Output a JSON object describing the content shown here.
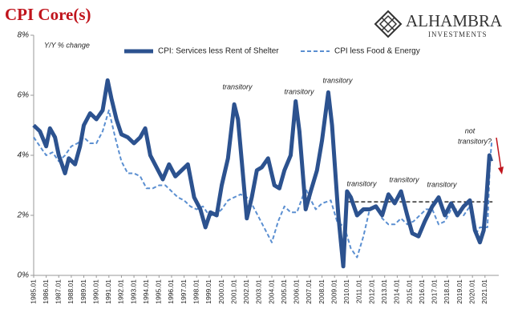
{
  "chart_data": {
    "type": "line",
    "title": "CPI Core(s)",
    "subtitle": "Y/Y % change",
    "logo": {
      "name": "ALHAMBRA",
      "tagline": "INVESTMENTS"
    },
    "annotations": [
      "transitory",
      "transitory",
      "transitory",
      "transitory",
      "transitory",
      "transitory"
    ],
    "question": [
      "not",
      "transitory?"
    ],
    "xlim": [
      1985,
      2022.1
    ],
    "ylim": [
      0,
      8
    ],
    "yticks": [
      {
        "value": 0,
        "label": "0%"
      },
      {
        "value": 2,
        "label": "2%"
      },
      {
        "value": 4,
        "label": "4%"
      },
      {
        "value": 6,
        "label": "6%"
      },
      {
        "value": 8,
        "label": "8%"
      }
    ],
    "xticks": [
      {
        "value": 1985,
        "label": "1985.01"
      },
      {
        "value": 1986,
        "label": "1986.01"
      },
      {
        "value": 1987,
        "label": "1987.01"
      },
      {
        "value": 1988,
        "label": "1988.01"
      },
      {
        "value": 1989,
        "label": "1989.01"
      },
      {
        "value": 1990,
        "label": "1990.01"
      },
      {
        "value": 1991,
        "label": "1991.01"
      },
      {
        "value": 1992,
        "label": "1992.01"
      },
      {
        "value": 1993,
        "label": "1993.01"
      },
      {
        "value": 1994,
        "label": "1994.01"
      },
      {
        "value": 1995,
        "label": "1995.01"
      },
      {
        "value": 1996,
        "label": "1996.01"
      },
      {
        "value": 1997,
        "label": "1997.01"
      },
      {
        "value": 1998,
        "label": "1998.01"
      },
      {
        "value": 1999,
        "label": "1999.01"
      },
      {
        "value": 2000,
        "label": "2000.01"
      },
      {
        "value": 2001,
        "label": "2001.01"
      },
      {
        "value": 2002,
        "label": "2002.01"
      },
      {
        "value": 2003,
        "label": "2003.01"
      },
      {
        "value": 2004,
        "label": "2004.01"
      },
      {
        "value": 2005,
        "label": "2005.01"
      },
      {
        "value": 2006,
        "label": "2006.01"
      },
      {
        "value": 2007,
        "label": "2007.01"
      },
      {
        "value": 2008,
        "label": "2008.01"
      },
      {
        "value": 2009,
        "label": "2009.01"
      },
      {
        "value": 2010,
        "label": "2010.01"
      },
      {
        "value": 2011,
        "label": "2011.01"
      },
      {
        "value": 2012,
        "label": "2012.01"
      },
      {
        "value": 2013,
        "label": "2013.01"
      },
      {
        "value": 2014,
        "label": "2014.01"
      },
      {
        "value": 2015,
        "label": "2015.01"
      },
      {
        "value": 2016,
        "label": "2016.01"
      },
      {
        "value": 2017,
        "label": "2017.01"
      },
      {
        "value": 2018,
        "label": "2018.01"
      },
      {
        "value": 2019,
        "label": "2019.01"
      },
      {
        "value": 2020,
        "label": "2020.01"
      },
      {
        "value": 2021,
        "label": "2021.01"
      }
    ],
    "reference_line": {
      "y": 2.45,
      "x": [
        2010.1,
        2021.6
      ],
      "color": "#000000"
    },
    "legend": "top",
    "series": [
      {
        "name": "CPI: Services less Rent of Shelter",
        "color": "#2c528f",
        "style": "solid",
        "x": [
          1985.0,
          1985.5,
          1986.0,
          1986.3,
          1986.7,
          1987.0,
          1987.5,
          1987.8,
          1988.3,
          1988.7,
          1989.0,
          1989.5,
          1990.0,
          1990.5,
          1990.9,
          1991.2,
          1991.6,
          1992.0,
          1992.5,
          1993.0,
          1993.5,
          1993.9,
          1994.3,
          1994.8,
          1995.3,
          1995.8,
          1996.3,
          1996.8,
          1997.3,
          1997.8,
          1998.3,
          1998.7,
          1999.1,
          1999.6,
          2000.0,
          2000.5,
          2001.0,
          2001.3,
          2001.6,
          2002.0,
          2002.4,
          2002.8,
          2003.2,
          2003.7,
          2004.2,
          2004.6,
          2005.0,
          2005.5,
          2005.9,
          2006.2,
          2006.7,
          2007.1,
          2007.6,
          2008.0,
          2008.5,
          2008.8,
          2009.3,
          2009.7,
          2010.0,
          2010.3,
          2010.8,
          2011.3,
          2011.8,
          2012.3,
          2012.8,
          2013.3,
          2013.8,
          2014.3,
          2014.8,
          2015.2,
          2015.7,
          2016.2,
          2016.8,
          2017.3,
          2017.8,
          2018.3,
          2018.8,
          2019.3,
          2019.8,
          2020.2,
          2020.6,
          2020.9,
          2021.1,
          2021.35,
          2021.5
        ],
        "values": [
          5.0,
          4.8,
          4.3,
          4.9,
          4.6,
          4.0,
          3.4,
          3.9,
          3.7,
          4.3,
          5.0,
          5.4,
          5.2,
          5.5,
          6.5,
          5.9,
          5.2,
          4.7,
          4.6,
          4.4,
          4.6,
          4.9,
          4.0,
          3.6,
          3.2,
          3.7,
          3.3,
          3.5,
          3.7,
          2.6,
          2.2,
          1.6,
          2.1,
          2.0,
          3.0,
          3.9,
          5.7,
          5.2,
          3.8,
          1.9,
          2.6,
          3.5,
          3.6,
          3.9,
          3.0,
          2.9,
          3.5,
          4.0,
          5.8,
          4.8,
          2.2,
          2.8,
          3.5,
          4.5,
          6.1,
          5.0,
          2.0,
          0.3,
          2.8,
          2.6,
          2.0,
          2.2,
          2.2,
          2.3,
          2.0,
          2.7,
          2.4,
          2.8,
          2.0,
          1.4,
          1.3,
          1.8,
          2.3,
          2.6,
          2.0,
          2.4,
          2.0,
          2.3,
          2.5,
          1.5,
          1.1,
          1.5,
          2.5,
          4.0,
          3.8
        ]
      },
      {
        "name": "CPI less Food & Energy",
        "color": "#5b8fd1",
        "style": "dashed",
        "x": [
          1985.0,
          1985.5,
          1986.0,
          1986.5,
          1987.0,
          1987.5,
          1988.0,
          1988.5,
          1989.0,
          1989.5,
          1990.0,
          1990.5,
          1991.0,
          1991.5,
          1992.0,
          1992.5,
          1993.0,
          1993.5,
          1994.0,
          1994.5,
          1995.0,
          1995.5,
          1996.0,
          1996.5,
          1997.0,
          1997.5,
          1998.0,
          1998.5,
          1999.0,
          1999.5,
          2000.0,
          2000.5,
          2001.0,
          2001.5,
          2002.0,
          2002.5,
          2003.0,
          2003.5,
          2004.0,
          2004.5,
          2005.0,
          2005.5,
          2006.0,
          2006.7,
          2007.0,
          2007.5,
          2008.0,
          2008.7,
          2009.2,
          2009.8,
          2010.3,
          2010.8,
          2011.3,
          2011.8,
          2012.3,
          2012.8,
          2013.3,
          2013.8,
          2014.3,
          2014.8,
          2015.3,
          2015.8,
          2016.3,
          2016.8,
          2017.3,
          2017.8,
          2018.3,
          2018.8,
          2019.3,
          2019.8,
          2020.3,
          2020.6,
          2020.9,
          2021.2,
          2021.4,
          2021.55
        ],
        "values": [
          4.6,
          4.3,
          4.0,
          4.1,
          3.8,
          4.0,
          4.3,
          4.4,
          4.6,
          4.4,
          4.4,
          4.8,
          5.5,
          4.6,
          3.8,
          3.4,
          3.4,
          3.3,
          2.9,
          2.9,
          3.0,
          3.0,
          2.8,
          2.6,
          2.5,
          2.3,
          2.2,
          2.3,
          2.0,
          2.0,
          2.2,
          2.5,
          2.6,
          2.7,
          2.6,
          2.3,
          1.9,
          1.5,
          1.1,
          1.8,
          2.3,
          2.1,
          2.1,
          2.9,
          2.6,
          2.2,
          2.4,
          2.5,
          1.8,
          1.6,
          0.9,
          0.6,
          1.3,
          2.2,
          2.3,
          1.9,
          1.7,
          1.7,
          1.9,
          1.7,
          1.8,
          2.0,
          2.2,
          2.2,
          1.7,
          1.8,
          2.2,
          2.2,
          2.0,
          2.3,
          1.4,
          1.6,
          1.6,
          1.6,
          3.8,
          4.5
        ]
      }
    ]
  }
}
